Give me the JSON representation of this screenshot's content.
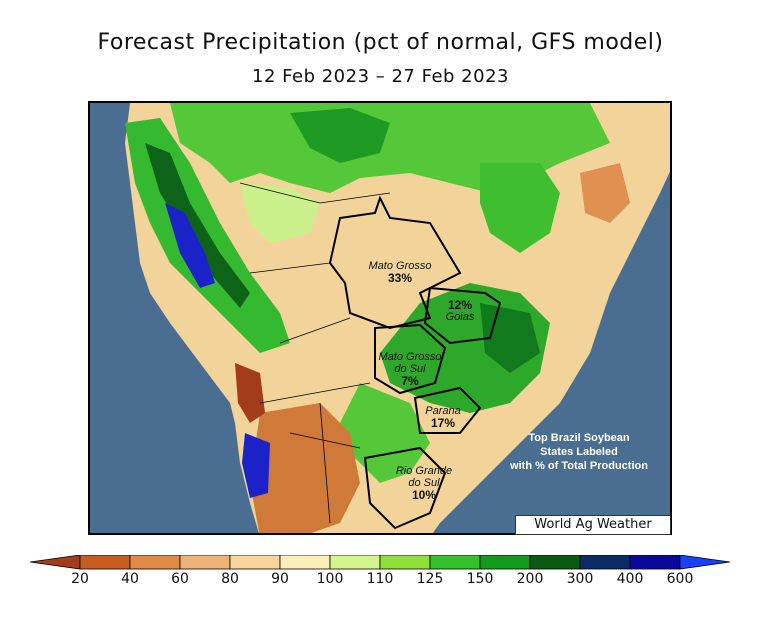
{
  "title": "Forecast Precipitation (pct of normal, GFS model)",
  "subtitle": "12 Feb 2023 – 27 Feb 2023",
  "credit": "World Ag Weather",
  "annotation": [
    "Top Brazil Soybean",
    "States Labeled",
    "with % of Total Production"
  ],
  "states": [
    {
      "name": "Mato Grosso",
      "pct": "33%"
    },
    {
      "name": "Goias",
      "pct": "12%"
    },
    {
      "name_lines": [
        "Mato Grosso",
        "do Sul"
      ],
      "pct": "7%"
    },
    {
      "name": "Parana",
      "pct": "17%"
    },
    {
      "name_lines": [
        "Rio Grande",
        "do Sul"
      ],
      "pct": "10%"
    }
  ],
  "legend": {
    "ticks": [
      "20",
      "40",
      "60",
      "80",
      "90",
      "100",
      "110",
      "125",
      "150",
      "200",
      "300",
      "400",
      "600"
    ],
    "colors": [
      "#a33c1a",
      "#c85d22",
      "#df8a45",
      "#eeb178",
      "#f7d59a",
      "#fbeeb8",
      "#d3f58c",
      "#8fe03a",
      "#36c12a",
      "#129a1c",
      "#0b5a12",
      "#0b2b66",
      "#0a0a9a",
      "#1a40ff"
    ]
  },
  "colors": {
    "ocean": "#4a6d92",
    "borders": "#000000"
  }
}
